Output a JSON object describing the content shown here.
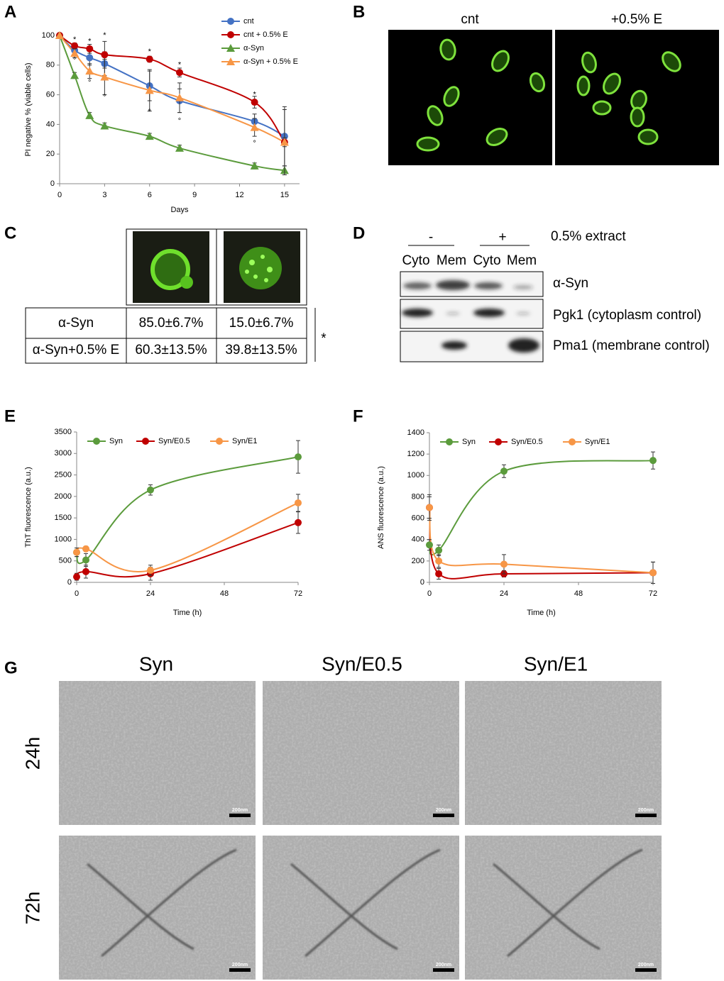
{
  "panel_labels": [
    "A",
    "B",
    "C",
    "D",
    "E",
    "F",
    "G"
  ],
  "chart_data": [
    {
      "type": "line",
      "xlabel": "Days",
      "ylabel": "PI negative % (viable cells)",
      "x": [
        0,
        1,
        2,
        3,
        6,
        8,
        13,
        15
      ],
      "xlim": [
        0,
        16
      ],
      "xticks": [
        0,
        3,
        6,
        9,
        12,
        15
      ],
      "ylim": [
        0,
        100
      ],
      "yticks": [
        0,
        20,
        40,
        60,
        80,
        100
      ],
      "legend": "top-right",
      "series": [
        {
          "name": "cnt",
          "color": "#4472c4",
          "marker": "circle",
          "values": [
            100,
            90,
            85,
            81,
            66,
            56,
            42,
            32
          ],
          "errors": [
            0,
            2,
            5,
            8,
            10,
            8,
            5,
            20
          ]
        },
        {
          "name": "cnt + 0.5% E",
          "color": "#c00000",
          "marker": "circle",
          "values": [
            100,
            93,
            91,
            87,
            84,
            75,
            55,
            28
          ],
          "errors": [
            0,
            2,
            3,
            9,
            2,
            3,
            4,
            3
          ]
        },
        {
          "name": "α-Syn",
          "color": "#5b9b3c",
          "marker": "triangle",
          "values": [
            100,
            73,
            46,
            39,
            32,
            24,
            12,
            9
          ],
          "errors": [
            0,
            2,
            2,
            2,
            2,
            2,
            2,
            3
          ]
        },
        {
          "name": "α-Syn + 0.5% E",
          "color": "#f79646",
          "marker": "triangle",
          "values": [
            100,
            88,
            76,
            72,
            63,
            58,
            38,
            28
          ],
          "errors": [
            0,
            3,
            5,
            12,
            14,
            10,
            6,
            22
          ]
        }
      ],
      "annotations": [
        {
          "text": "*",
          "x": 1,
          "y": 97
        },
        {
          "text": "*",
          "x": 2,
          "y": 96
        },
        {
          "text": "*",
          "x": 3,
          "y": 100
        },
        {
          "text": "*",
          "x": 6,
          "y": 89
        },
        {
          "text": "*",
          "x": 8,
          "y": 80
        },
        {
          "text": "*",
          "x": 13,
          "y": 60
        },
        {
          "text": "°",
          "x": 1,
          "y": 83
        },
        {
          "text": "°",
          "x": 2,
          "y": 68
        },
        {
          "text": "°",
          "x": 3,
          "y": 58
        },
        {
          "text": "°",
          "x": 6,
          "y": 48
        },
        {
          "text": "°",
          "x": 8,
          "y": 42
        },
        {
          "text": "°",
          "x": 13,
          "y": 27
        }
      ]
    },
    {
      "type": "line",
      "xlabel": "Time (h)",
      "ylabel": "ThT fluorescence (a.u.)",
      "x": [
        0,
        3,
        24,
        72
      ],
      "xlim": [
        0,
        72
      ],
      "xticks": [
        0,
        24,
        48,
        72
      ],
      "ylim": [
        0,
        3500
      ],
      "yticks": [
        0,
        500,
        1000,
        1500,
        2000,
        2500,
        3000,
        3500
      ],
      "legend": "top",
      "series": [
        {
          "name": "Syn",
          "color": "#5b9b3c",
          "marker": "circle",
          "values": [
            700,
            520,
            2150,
            2920
          ],
          "errors": [
            100,
            150,
            120,
            380
          ]
        },
        {
          "name": "Syn/E0.5",
          "color": "#c00000",
          "marker": "circle",
          "values": [
            130,
            250,
            200,
            1390
          ],
          "errors": [
            80,
            150,
            150,
            250
          ]
        },
        {
          "name": "Syn/E1",
          "color": "#f79646",
          "marker": "circle",
          "values": [
            700,
            780,
            280,
            1850
          ],
          "errors": [
            100,
            60,
            120,
            200
          ]
        }
      ]
    },
    {
      "type": "line",
      "xlabel": "Time (h)",
      "ylabel": "ANS fluorescence (a.u.)",
      "x": [
        0,
        3,
        24,
        72
      ],
      "xlim": [
        0,
        72
      ],
      "xticks": [
        0,
        24,
        48,
        72
      ],
      "ylim": [
        0,
        1400
      ],
      "yticks": [
        0,
        200,
        400,
        600,
        800,
        1000,
        1200,
        1400
      ],
      "legend": "top",
      "series": [
        {
          "name": "Syn",
          "color": "#5b9b3c",
          "marker": "circle",
          "values": [
            350,
            300,
            1040,
            1140
          ],
          "errors": [
            50,
            50,
            60,
            80
          ]
        },
        {
          "name": "Syn/E0.5",
          "color": "#c00000",
          "marker": "circle",
          "values": [
            700,
            80,
            80,
            90
          ],
          "errors": [
            100,
            50,
            30,
            100
          ]
        },
        {
          "name": "Syn/E1",
          "color": "#f79646",
          "marker": "circle",
          "values": [
            700,
            200,
            170,
            90
          ],
          "errors": [
            120,
            60,
            90,
            100
          ]
        }
      ]
    }
  ],
  "panel_b": {
    "labels": [
      "cnt",
      "+0.5% E"
    ]
  },
  "panel_c": {
    "table": {
      "rows": [
        [
          "α-Syn",
          "85.0±6.7%",
          "15.0±6.7%"
        ],
        [
          "α-Syn+0.5% E",
          "60.3±13.5%",
          "39.8±13.5%"
        ]
      ]
    },
    "significance": "*"
  },
  "panel_d": {
    "groups": [
      "-",
      "+"
    ],
    "group_title": "0.5% extract",
    "lanes": [
      "Cyto",
      "Mem",
      "Cyto",
      "Mem"
    ],
    "rows": [
      "α-Syn",
      "Pgk1 (cytoplasm control)",
      "Pma1 (membrane control)"
    ]
  },
  "panel_g": {
    "columns": [
      "Syn",
      "Syn/E0.5",
      "Syn/E1"
    ],
    "rows": [
      "24h",
      "72h"
    ],
    "scale_bar": "200nm"
  }
}
